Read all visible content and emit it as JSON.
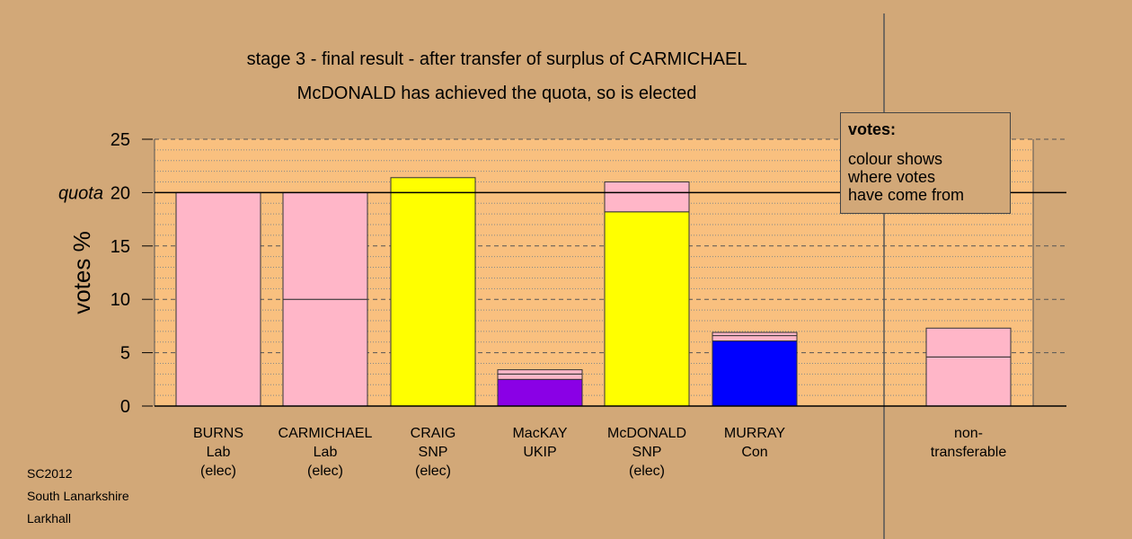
{
  "chart_data": {
    "type": "bar",
    "title": "stage 3 - final result - after transfer of surplus of CARMICHAEL",
    "subtitle": "McDONALD has achieved the quota, so is elected",
    "ylabel": "votes %",
    "ylim": [
      0,
      25
    ],
    "yticks": [
      "0",
      "5",
      "10",
      "15",
      "20",
      "25"
    ],
    "quota_label": "quota",
    "quota": 20,
    "grid": true,
    "colors": {
      "lab": "#ffb6c8",
      "snp": "#ffff00",
      "ukip": "#8a00e6",
      "con": "#0000ff",
      "plot_bg": "#f9c07f",
      "page_bg": "#d2a878"
    },
    "categories": [
      {
        "lines": [
          "BURNS",
          "Lab",
          "(elec)"
        ],
        "segments": [
          {
            "value": 20.0,
            "color": "lab"
          }
        ]
      },
      {
        "lines": [
          "CARMICHAEL",
          "Lab",
          "(elec)"
        ],
        "segments": [
          {
            "value": 10.0,
            "color": "lab"
          },
          {
            "value": 10.0,
            "color": "lab"
          }
        ]
      },
      {
        "lines": [
          "CRAIG",
          "SNP",
          "(elec)"
        ],
        "segments": [
          {
            "value": 21.4,
            "color": "snp"
          }
        ]
      },
      {
        "lines": [
          "MacKAY",
          "UKIP"
        ],
        "segments": [
          {
            "value": 2.5,
            "color": "ukip"
          },
          {
            "value": 0.5,
            "color": "lab"
          },
          {
            "value": 0.4,
            "color": "lab"
          }
        ]
      },
      {
        "lines": [
          "McDONALD",
          "SNP",
          "(elec)"
        ],
        "segments": [
          {
            "value": 18.2,
            "color": "snp"
          },
          {
            "value": 2.8,
            "color": "lab"
          }
        ]
      },
      {
        "lines": [
          "MURRAY",
          "Con"
        ],
        "segments": [
          {
            "value": 6.1,
            "color": "con"
          },
          {
            "value": 0.5,
            "color": "lab"
          },
          {
            "value": 0.3,
            "color": "lab"
          }
        ]
      }
    ],
    "non_transferable": {
      "lines": [
        "non-",
        "transferable"
      ],
      "segments": [
        {
          "value": 4.6,
          "color": "lab"
        },
        {
          "value": 2.7,
          "color": "lab"
        }
      ]
    }
  },
  "legend": {
    "title": "votes:",
    "lines": [
      "colour shows",
      "where votes",
      "have come from"
    ]
  },
  "footer": {
    "line1": "SC2012",
    "line2": "South Lanarkshire",
    "line3": "Larkhall"
  }
}
